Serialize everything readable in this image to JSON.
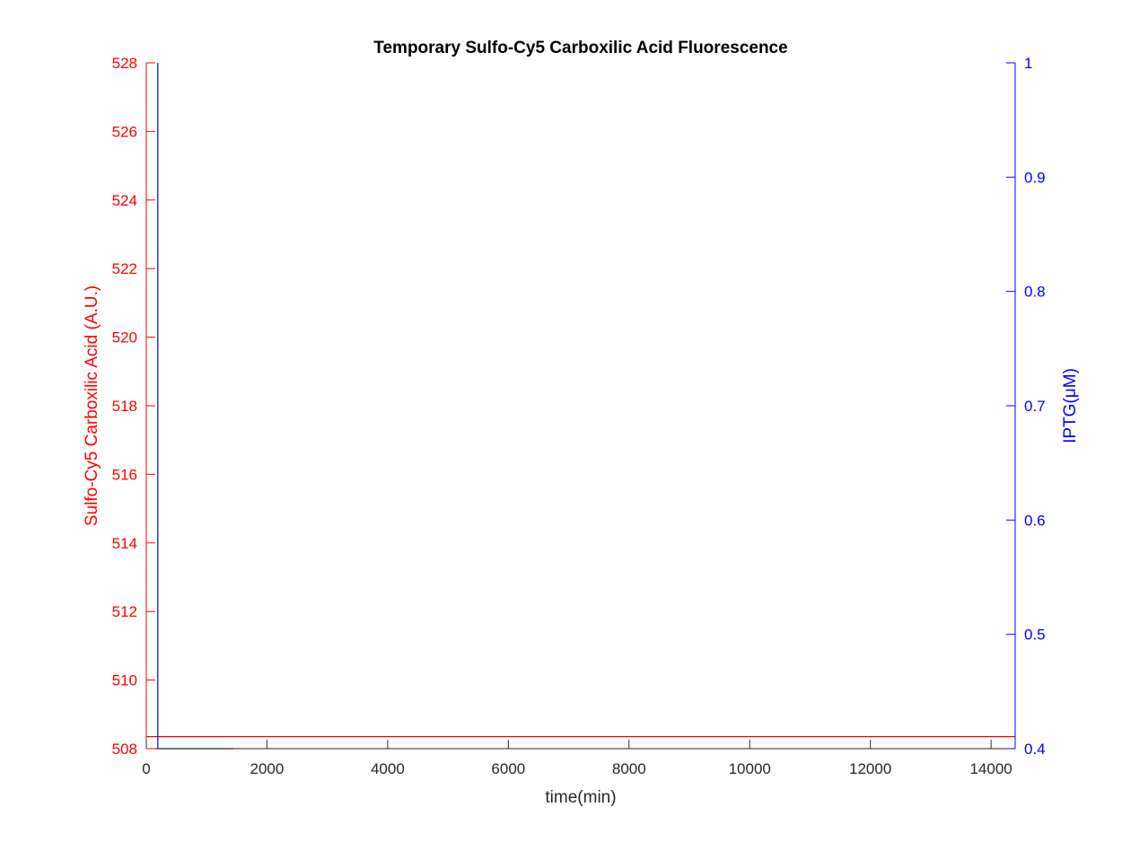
{
  "chart_data": {
    "type": "line",
    "title": "Temporary Sulfo-Cy5 Carboxilic Acid Fluorescence",
    "xlabel": "time(min)",
    "ylabel_left": "Sulfo-Cy5 Carboxilic Acid (A.U.)",
    "ylabel_right": "IPTG(μM)",
    "xlim": [
      0,
      14400
    ],
    "ylim_left": [
      508,
      528
    ],
    "ylim_right": [
      0.4,
      1
    ],
    "x_ticks": [
      0,
      2000,
      4000,
      6000,
      8000,
      10000,
      12000,
      14000
    ],
    "y_left_ticks": [
      508,
      510,
      512,
      514,
      516,
      518,
      520,
      522,
      524,
      526,
      528
    ],
    "y_right_ticks": [
      0.4,
      0.5,
      0.6,
      0.7,
      0.8,
      0.9,
      1
    ],
    "grid": false,
    "colors": {
      "left_axis": "#ff0000",
      "right_axis": "#0000ff",
      "axes": "#262626"
    },
    "series": [
      {
        "axis": "left",
        "color": "#ff0000",
        "x": [
          0,
          14400
        ],
        "y": [
          508.35,
          508.35
        ]
      },
      {
        "axis": "right",
        "color": "#0000ff",
        "x": [
          190,
          190,
          1440
        ],
        "y": [
          1.0,
          0.4,
          0.4
        ]
      }
    ]
  }
}
